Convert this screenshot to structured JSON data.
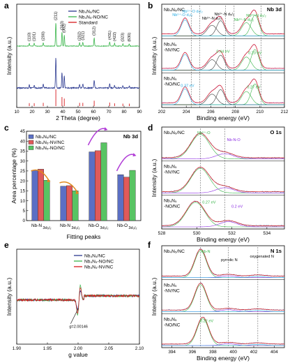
{
  "panels": {
    "a": {
      "letter": "a"
    },
    "b": {
      "letter": "b"
    },
    "c": {
      "letter": "c"
    },
    "d": {
      "letter": "d"
    },
    "e": {
      "letter": "e"
    },
    "f": {
      "letter": "f"
    }
  },
  "chart_data": [
    {
      "id": "a",
      "type": "line",
      "xlabel": "2 Theta (degree)",
      "ylabel": "Intensity (a.u.)",
      "xlim": [
        10,
        90
      ],
      "xticks": [
        "10",
        "20",
        "30",
        "40",
        "50",
        "60",
        "70",
        "80",
        "90"
      ],
      "legend": [
        {
          "label": "Nb₄N₅/NC",
          "color": "#2b3990"
        },
        {
          "label": "Nb₄N₅-NO/NC",
          "color": "#39b54a"
        },
        {
          "label": "Standard",
          "color": "#d7191c"
        }
      ],
      "peak_labels": [
        "(110)",
        "(101)",
        "(200)",
        "(211)",
        "(310)",
        "(002)",
        "(202)",
        "(321)",
        "(312)",
        "(431)",
        "(422)",
        "(323)",
        "(630)"
      ],
      "peak_positions": [
        18.2,
        21.4,
        27.3,
        35.5,
        39.5,
        41.0,
        51.0,
        53.1,
        60.5,
        70.6,
        73.8,
        79.2,
        83.4
      ],
      "peak_heights_top": [
        0.1,
        0.1,
        0.12,
        0.85,
        0.5,
        0.4,
        0.12,
        0.13,
        0.3,
        0.15,
        0.1,
        0.08,
        0.08
      ],
      "peak_heights_bottom": [
        0.1,
        0.1,
        0.12,
        1.0,
        0.5,
        0.4,
        0.12,
        0.12,
        0.26,
        0.14,
        0.09,
        0.07,
        0.07
      ]
    },
    {
      "id": "b",
      "type": "line",
      "title": "Nb 3d",
      "xlabel": "Binding energy (eV)",
      "ylabel": "Intensity (a.u.)",
      "xlim": [
        202,
        212
      ],
      "xticks": [
        "202",
        "204",
        "206",
        "208",
        "210",
        "212"
      ],
      "sample_labels": [
        [
          "Nb₄N₅/NC"
        ],
        [
          "Nb₄N₅",
          "-NV/NC"
        ],
        [
          "Nb₄N₅",
          "-NO/NC"
        ]
      ],
      "dashed_lines": [
        204.4,
        205.1,
        207.2,
        207.9,
        210.1
      ],
      "annotations": [
        "Nb³⁺-N d₅/₂",
        "Nb³⁺-N d₃/₂",
        "Nb³⁺-N d₅/₂",
        "Nb³⁺-N d₃/₂",
        "Nb⁵⁺-O d₅/₂",
        "Nb⁵⁺-O d₃/₂"
      ],
      "peak_labels_mid": [
        "0.20 eV",
        "0.44 eV"
      ],
      "peak_labels_bottom": [
        "0.27 eV",
        "0.37 eV"
      ]
    },
    {
      "id": "c",
      "type": "bar",
      "title": "Nb 3d",
      "xlabel": "Fitting peaks",
      "ylabel": "Area percentage (%)",
      "ylim": [
        0,
        45
      ],
      "yticks": [
        "0",
        "5",
        "10",
        "15",
        "20",
        "25",
        "30",
        "35",
        "40",
        "45"
      ],
      "categories": [
        [
          "Nb-N",
          "3d₅/₂"
        ],
        [
          "Nb-N",
          "3d₃/₂"
        ],
        [
          "Nb-O",
          "3d₅/₂"
        ],
        [
          "Nb-O",
          "3d₃/₂"
        ]
      ],
      "series": [
        {
          "name": "Nb₄N₅/NC",
          "color": "#5b6fc4",
          "values": [
            25.4,
            17.3,
            34.6,
            23.1
          ]
        },
        {
          "name": "Nb₄N₅-NV/NC",
          "color": "#e05a5a",
          "values": [
            25.9,
            17.6,
            35.2,
            21.9
          ]
        },
        {
          "name": "Nb₄N₅-NO/NC",
          "color": "#58c463",
          "values": [
            20.3,
            15.0,
            39.2,
            25.3
          ]
        }
      ]
    },
    {
      "id": "d",
      "type": "line",
      "title": "O 1s",
      "xlabel": "Binding energy (eV)",
      "ylabel": "Intensity (a.u.)",
      "xlim": [
        528,
        535
      ],
      "xticks": [
        "528",
        "530",
        "532",
        "534"
      ],
      "sample_labels": [
        [
          "Nb₄N₅/NC"
        ],
        [
          "Nb₄N₅",
          "-NV/NC"
        ],
        [
          "Nb₄N₅",
          "-NO/NC"
        ]
      ],
      "dashed_lines": [
        530.2,
        531.6
      ],
      "annotations": [
        "Nb⁵⁺-O",
        "Nb-N-O"
      ],
      "peak_labels_bottom": [
        "0.27 eV",
        "0.2 eV"
      ]
    },
    {
      "id": "e",
      "type": "line",
      "xlabel": "g value",
      "ylabel": "Intensity (a.u.)",
      "xlim": [
        1.9,
        2.1
      ],
      "xticks": [
        "1.90",
        "1.95",
        "2.00",
        "2.05",
        "2.10"
      ],
      "legend": [
        {
          "label": "Nb₄N₅/NC",
          "color": "#2b3990"
        },
        {
          "label": "Nb₄N₅-NO/NC",
          "color": "#39b54a"
        },
        {
          "label": "Nb₄N₅-NV/NC",
          "color": "#d7191c"
        }
      ],
      "annotation": "g=2.00146"
    },
    {
      "id": "f",
      "type": "line",
      "title": "N 1s",
      "xlabel": "Binding energy (eV)",
      "ylabel": "Intensity (a.u.)",
      "xlim": [
        393,
        405
      ],
      "xticks": [
        "394",
        "396",
        "398",
        "400",
        "402",
        "404"
      ],
      "sample_labels": [
        [
          "Nb₄N₅/NC"
        ],
        [
          "Nb₄N₅",
          "-NV/NC"
        ],
        [
          "Nb₄N₅",
          "-NO/NC"
        ]
      ],
      "dashed_lines": [
        396.8,
        399.5,
        402.4
      ],
      "annotations": [
        "Nb-N",
        "pyrrolic N",
        "oxygenated N"
      ],
      "peak_labels_bottom": [
        "0.22 eV"
      ]
    }
  ]
}
